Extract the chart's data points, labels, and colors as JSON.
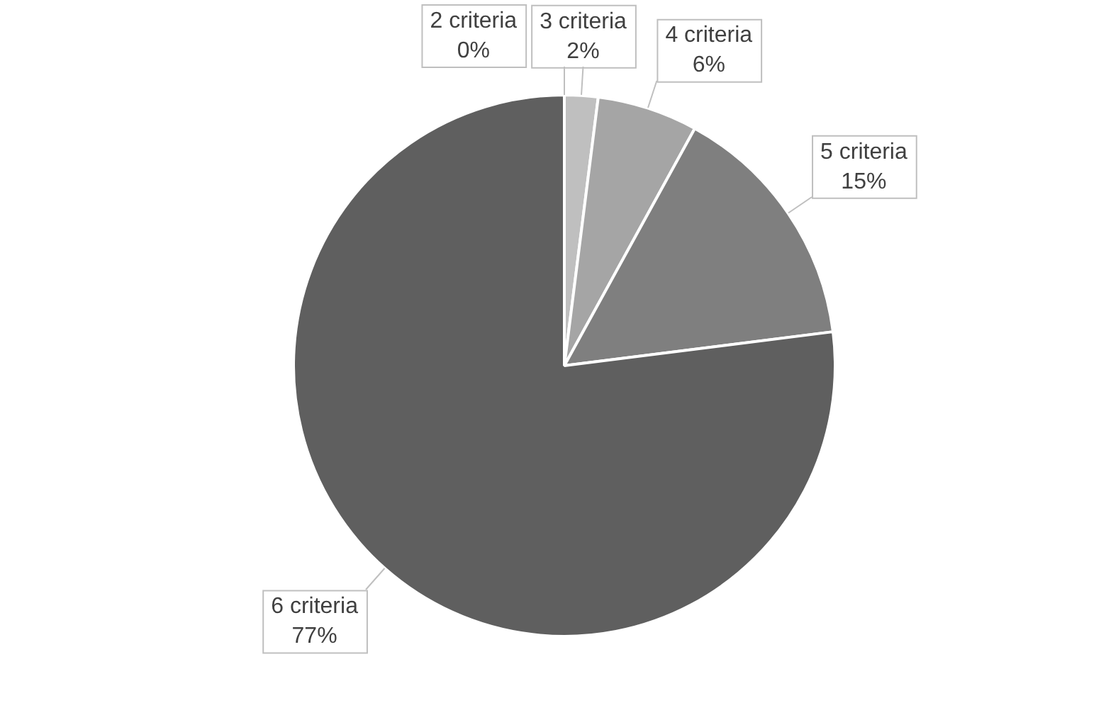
{
  "chart_data": {
    "type": "pie",
    "categories": [
      "2 criteria",
      "3 criteria",
      "4 criteria",
      "5 criteria",
      "6 criteria"
    ],
    "values": [
      0,
      2,
      6,
      15,
      77
    ],
    "colors": [
      "#d9d9d9",
      "#bfbfbf",
      "#a5a5a5",
      "#7f7f7f",
      "#5f5f5f"
    ],
    "value_labels": [
      "0%",
      "2%",
      "6%",
      "15%",
      "77%"
    ]
  }
}
